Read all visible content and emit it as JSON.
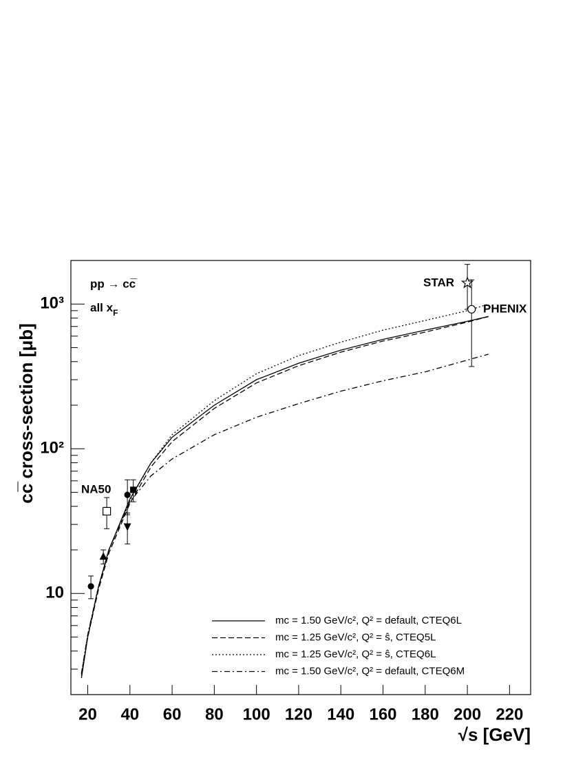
{
  "chart_data": {
    "type": "line",
    "xlabel": "√s [GeV]",
    "ylabel": "cc̅ cross-section [μb]",
    "xlim": [
      12,
      230
    ],
    "ylim": [
      2,
      2000
    ],
    "log_y": true,
    "xticks": [
      20,
      40,
      60,
      80,
      100,
      120,
      140,
      160,
      180,
      200,
      220
    ],
    "yticks": [
      10,
      {
        "value": 100,
        "label": "10²"
      },
      {
        "value": 1000,
        "label": "10³"
      }
    ],
    "yminor_ticks": [
      2,
      3,
      4,
      5,
      6,
      7,
      8,
      9,
      20,
      30,
      40,
      50,
      60,
      70,
      80,
      90,
      200,
      300,
      400,
      500,
      600,
      700,
      800,
      900,
      2000
    ],
    "legend": "lower right",
    "annotations": [
      "pp → cc̅",
      "all x",
      "F",
      "NA50",
      "STAR",
      "PHENIX"
    ],
    "x": [
      17,
      20,
      25,
      30,
      40,
      50,
      60,
      80,
      100,
      120,
      140,
      160,
      180,
      200,
      210
    ],
    "series": [
      {
        "name": "mc = 1.50 GeV/c², Q² = default, CTEQ6L",
        "color": "#000000",
        "dash": "solid",
        "values": [
          2.6,
          5,
          11,
          20,
          45,
          80,
          120,
          200,
          300,
          390,
          480,
          570,
          660,
          760,
          820
        ]
      },
      {
        "name": "mc = 1.25 GeV/c², Q² = ŝ, CTEQ5L",
        "color": "#000000",
        "dash": "dashed",
        "values": [
          2.7,
          5,
          10.5,
          19,
          42,
          75,
          112,
          190,
          285,
          375,
          465,
          555,
          640,
          750,
          820
        ]
      },
      {
        "name": "mc = 1.25 GeV/c², Q² = ŝ, CTEQ6L",
        "color": "#000000",
        "dash": "dotted",
        "values": [
          2.8,
          5.2,
          11,
          20,
          44,
          80,
          125,
          215,
          330,
          440,
          545,
          660,
          770,
          900,
          1000
        ]
      },
      {
        "name": "mc = 1.50 GeV/c², Q² = default, CTEQ6M",
        "color": "#000000",
        "dash": "dashdot",
        "values": [
          2.8,
          5.2,
          11,
          20,
          43,
          65,
          85,
          125,
          165,
          205,
          250,
          295,
          340,
          410,
          450
        ]
      }
    ],
    "points": [
      {
        "marker": "circle-filled",
        "x": 21.5,
        "y": 11.2,
        "err": 2
      },
      {
        "marker": "triangle-up",
        "x": 27.4,
        "y": 18,
        "err": 2
      },
      {
        "marker": "square-open",
        "x": 29,
        "y": 37,
        "err": 9
      },
      {
        "marker": "triangle-down",
        "x": 38.8,
        "y": 29,
        "err": 7
      },
      {
        "marker": "circle-filled",
        "x": 38.8,
        "y": 48,
        "err": 13
      },
      {
        "marker": "square-filled",
        "x": 41.6,
        "y": 52,
        "err": 9
      },
      {
        "marker": "star-open",
        "x": 200,
        "y": 1400,
        "err": 480
      },
      {
        "marker": "circle-open",
        "x": 202,
        "y": 920,
        "err": 550
      }
    ]
  }
}
